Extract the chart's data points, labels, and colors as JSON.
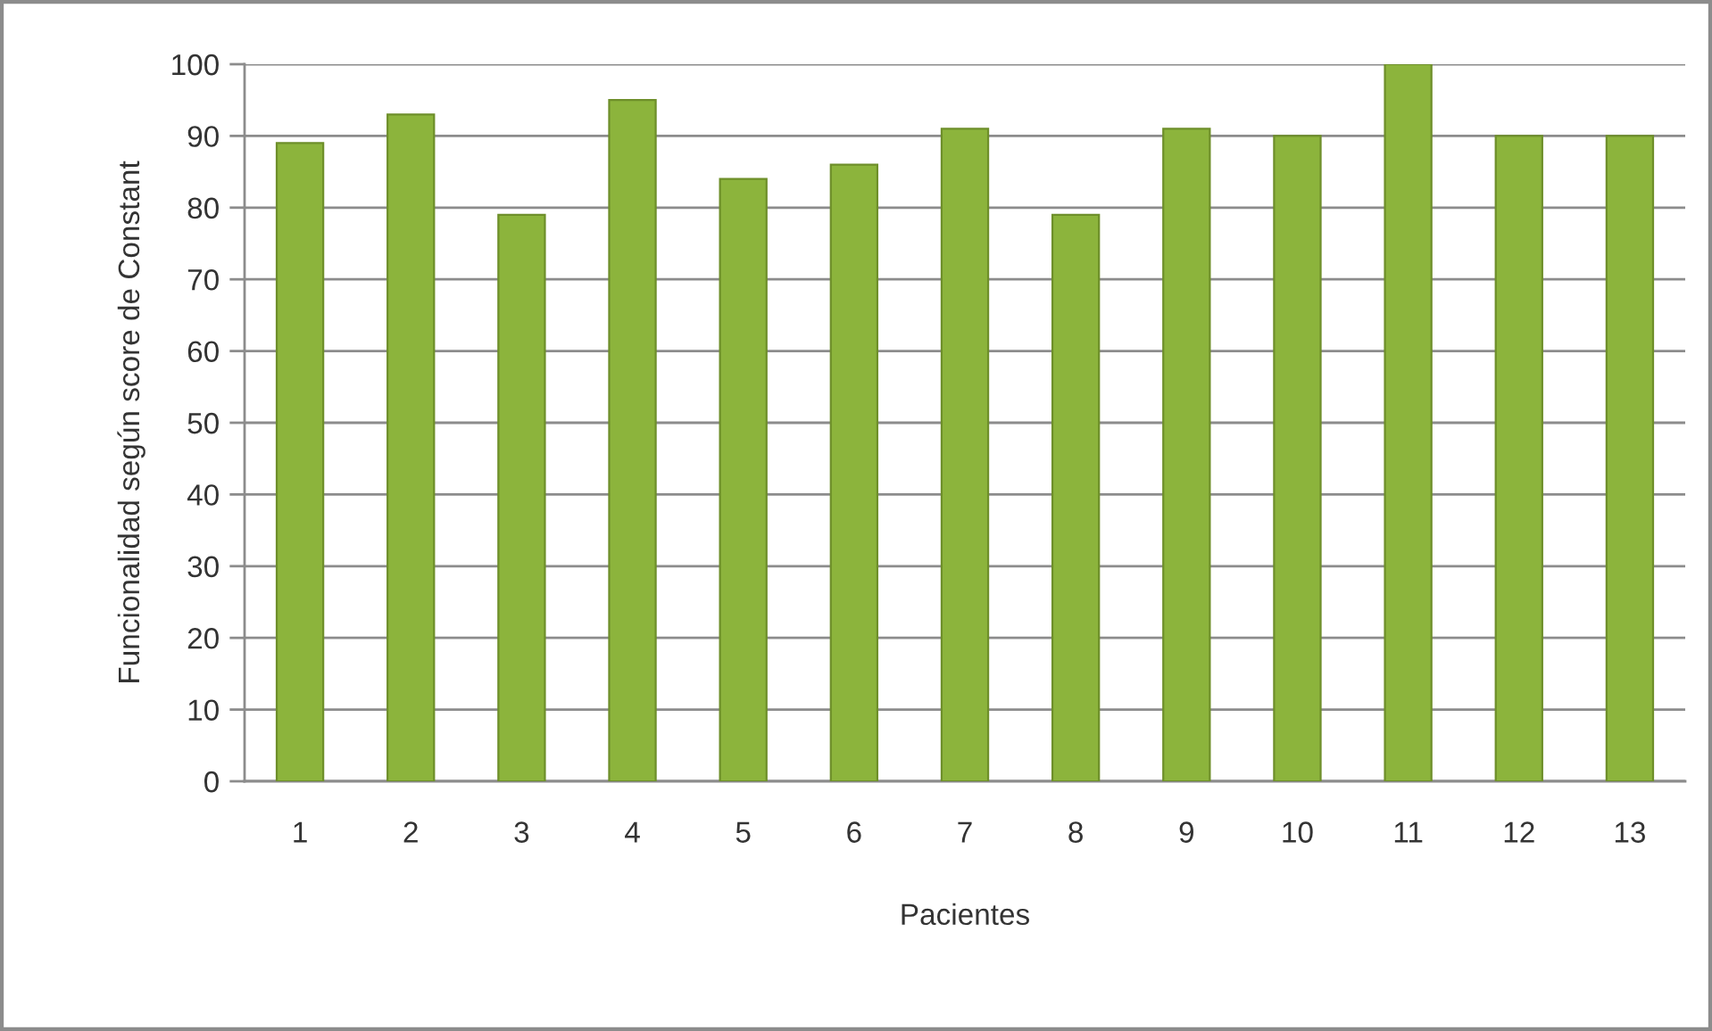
{
  "chart_data": {
    "type": "bar",
    "xlabel": "Pacientes",
    "ylabel": "Funcionalidad según score de Constant",
    "categories": [
      "1",
      "2",
      "3",
      "4",
      "5",
      "6",
      "7",
      "8",
      "9",
      "10",
      "11",
      "12",
      "13"
    ],
    "values": [
      89,
      93,
      79,
      95,
      84,
      86,
      91,
      79,
      91,
      90,
      100,
      90,
      90
    ],
    "color": "#8cb43c",
    "ylim": [
      0,
      100
    ],
    "yticks": [
      0,
      10,
      20,
      30,
      40,
      50,
      60,
      70,
      80,
      90,
      100
    ],
    "grid": "y"
  }
}
